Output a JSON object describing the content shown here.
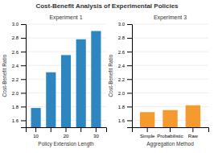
{
  "title": "Cost-Benefit Analysis of Experimental Policies",
  "chart_data": [
    {
      "type": "bar",
      "title": "Experiment 1",
      "x_label": "Policy Extension Length",
      "y_label": "Cost-Benefit Ratio",
      "categories": [
        "10",
        null,
        "20",
        null,
        "30"
      ],
      "values": [
        1.78,
        2.3,
        2.55,
        2.78,
        2.9
      ],
      "color": "#2e86c0",
      "ylim": [
        1.5,
        3.0
      ],
      "yticks": [
        1.6,
        1.8,
        {
          "value": 2,
          "label": "2.0"
        },
        2.2,
        2.4,
        2.6,
        2.8,
        {
          "value": 3,
          "label": "3.0"
        }
      ],
      "grid": true
    },
    {
      "type": "bar",
      "title": "Experiment 3",
      "x_label": "Aggregation Method",
      "y_label": "Cost-Benefit Ratio",
      "categories": [
        "Simple",
        "Probabilistic",
        "Raw"
      ],
      "values": [
        1.72,
        1.75,
        1.82
      ],
      "color": "#f59a2e",
      "ylim": [
        1.5,
        3.0
      ],
      "yticks": [
        1.6,
        1.8,
        {
          "value": 2,
          "label": "2.0"
        },
        2.2,
        2.4,
        2.6,
        2.8,
        {
          "value": 3,
          "label": "3.0"
        }
      ],
      "grid": true
    }
  ]
}
